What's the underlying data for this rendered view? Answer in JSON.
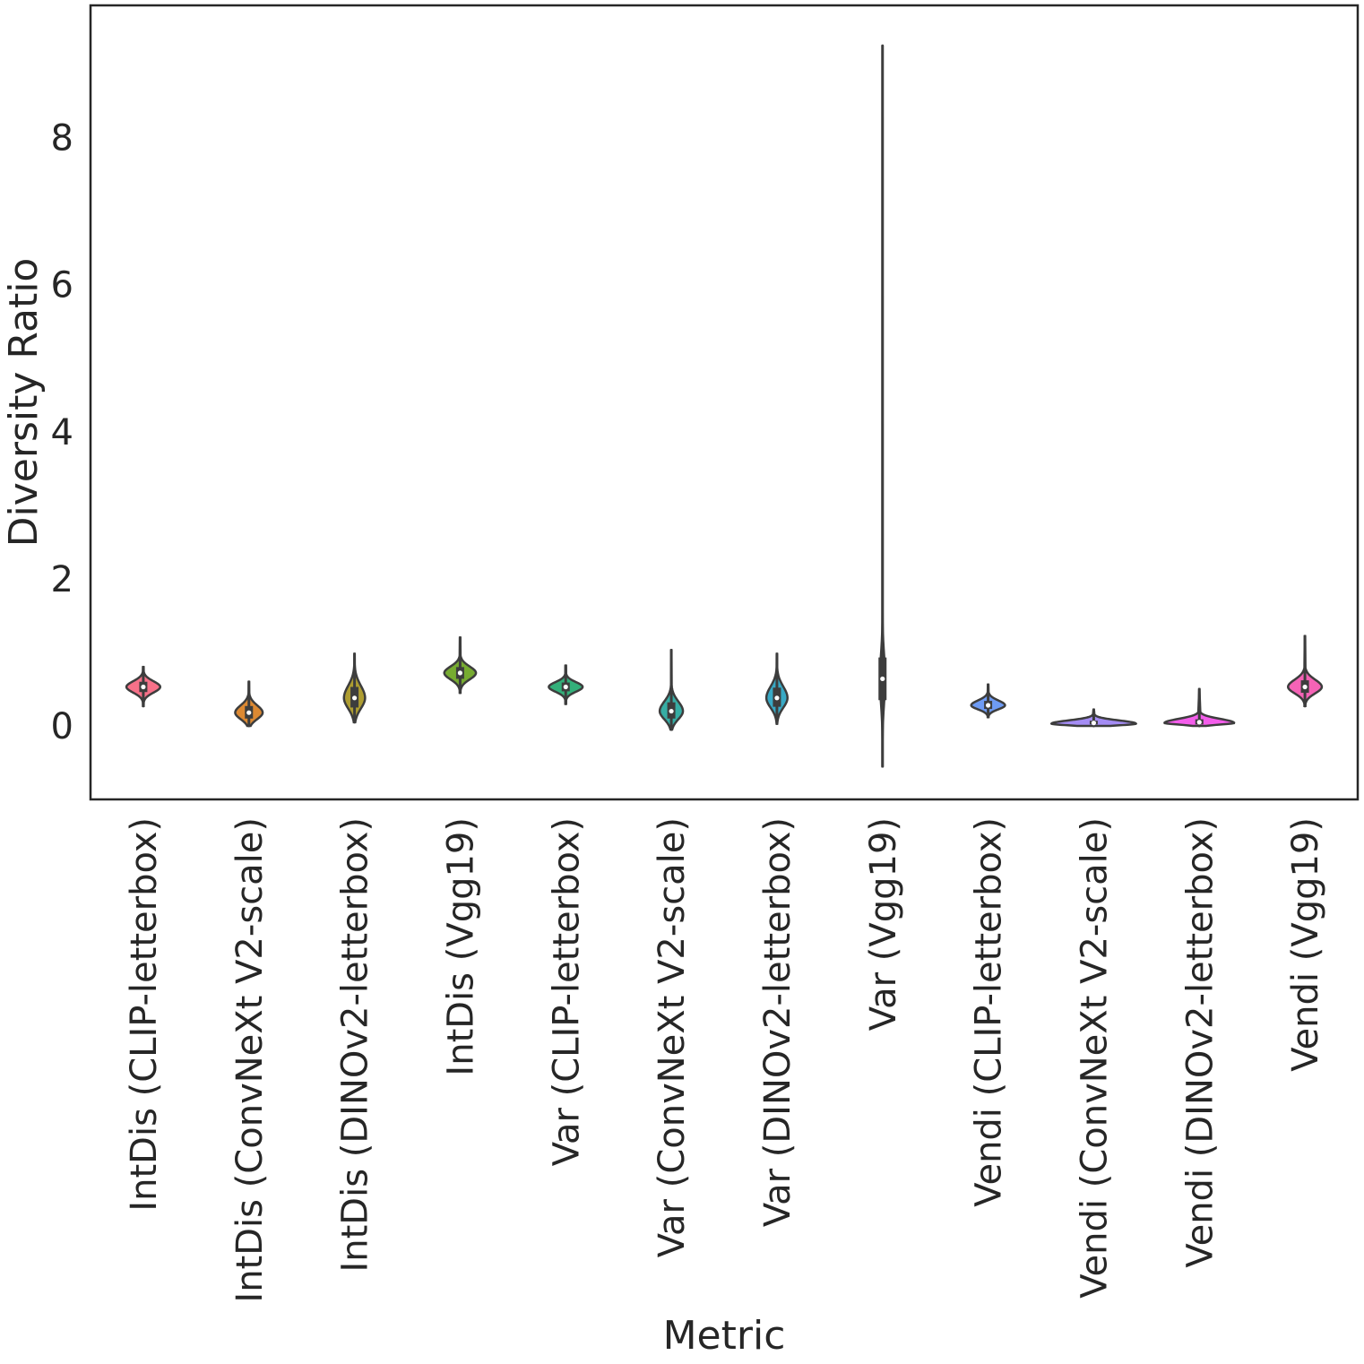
{
  "chart_data": {
    "type": "violin",
    "title": "",
    "xlabel": "Metric",
    "ylabel": "Diversity Ratio",
    "ylim": [
      -1.0,
      9.8
    ],
    "yticks": [
      0,
      2,
      4,
      6,
      8
    ],
    "grid": false,
    "categories": [
      "IntDis (CLIP-letterbox)",
      "IntDis (ConvNeXt V2-scale)",
      "IntDis (DINOv2-letterbox)",
      "IntDis (Vgg19)",
      "Var (CLIP-letterbox)",
      "Var (ConvNeXt V2-scale)",
      "Var (DINOv2-letterbox)",
      "Var (Vgg19)",
      "Vendi (CLIP-letterbox)",
      "Vendi (ConvNeXt V2-scale)",
      "Vendi (DINOv2-letterbox)",
      "Vendi (Vgg19)"
    ],
    "colors": [
      "#f77189",
      "#dc8932",
      "#ae9d31",
      "#77ab31",
      "#33b07a",
      "#36ada4",
      "#38a9c5",
      "#6e9bf4",
      "#6e9bf4",
      "#a48cf4",
      "#f45deb",
      "#f563b6"
    ],
    "violins": [
      {
        "min": 0.27,
        "q1": 0.46,
        "median": 0.53,
        "q3": 0.6,
        "max": 0.8,
        "peak": 0.53,
        "density_width": 0.32
      },
      {
        "min": 0.0,
        "q1": 0.1,
        "median": 0.18,
        "q3": 0.27,
        "max": 0.6,
        "peak": 0.18,
        "density_width": 0.26
      },
      {
        "min": 0.05,
        "q1": 0.25,
        "median": 0.38,
        "q3": 0.53,
        "max": 0.98,
        "peak": 0.38,
        "density_width": 0.2
      },
      {
        "min": 0.45,
        "q1": 0.64,
        "median": 0.72,
        "q3": 0.8,
        "max": 1.2,
        "peak": 0.72,
        "density_width": 0.3
      },
      {
        "min": 0.3,
        "q1": 0.47,
        "median": 0.53,
        "q3": 0.59,
        "max": 0.82,
        "peak": 0.53,
        "density_width": 0.32
      },
      {
        "min": -0.05,
        "q1": 0.1,
        "median": 0.2,
        "q3": 0.32,
        "max": 1.03,
        "peak": 0.2,
        "density_width": 0.22
      },
      {
        "min": 0.03,
        "q1": 0.26,
        "median": 0.38,
        "q3": 0.52,
        "max": 0.98,
        "peak": 0.38,
        "density_width": 0.2
      },
      {
        "min": -0.55,
        "q1": 0.35,
        "median": 0.64,
        "q3": 0.93,
        "max": 9.25,
        "peak": 0.64,
        "density_width": 0.05
      },
      {
        "min": 0.12,
        "q1": 0.23,
        "median": 0.28,
        "q3": 0.34,
        "max": 0.56,
        "peak": 0.28,
        "density_width": 0.32
      },
      {
        "min": 0.0,
        "q1": 0.02,
        "median": 0.04,
        "q3": 0.07,
        "max": 0.22,
        "peak": 0.03,
        "density_width": 0.8
      },
      {
        "min": 0.0,
        "q1": 0.02,
        "median": 0.05,
        "q3": 0.09,
        "max": 0.5,
        "peak": 0.04,
        "density_width": 0.66
      },
      {
        "min": 0.27,
        "q1": 0.45,
        "median": 0.53,
        "q3": 0.62,
        "max": 1.22,
        "peak": 0.53,
        "density_width": 0.32
      }
    ]
  }
}
